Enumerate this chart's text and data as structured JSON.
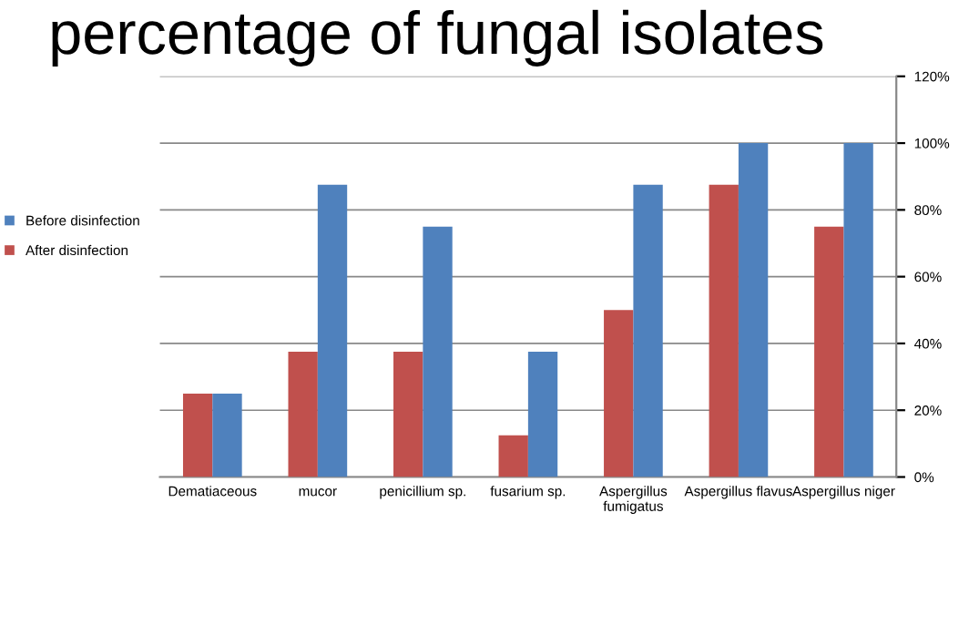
{
  "chart_data": {
    "type": "bar",
    "title": "percentage of fungal isolates",
    "categories": [
      "Dematiaceous",
      "mucor",
      "penicillium sp.",
      "fusarium sp.",
      "Aspergillus\nfumigatus",
      "Aspergillus flavus",
      "Aspergillus niger"
    ],
    "series": [
      {
        "name": "After disinfection",
        "color": "#c0504d",
        "values": [
          25,
          37.5,
          37.5,
          12.5,
          50,
          87.5,
          75
        ]
      },
      {
        "name": "Before disinfection",
        "color": "#4f81bd",
        "values": [
          25,
          87.5,
          75,
          37.5,
          87.5,
          100,
          100
        ]
      }
    ],
    "ylim": [
      0,
      120
    ],
    "yticks": [
      {
        "value": 0,
        "label": "0%"
      },
      {
        "value": 20,
        "label": "20%"
      },
      {
        "value": 40,
        "label": "40%"
      },
      {
        "value": 60,
        "label": "60%"
      },
      {
        "value": 80,
        "label": "80%"
      },
      {
        "value": 100,
        "label": "100%"
      },
      {
        "value": 120,
        "label": "120%"
      }
    ],
    "grid": "y",
    "legend": "left"
  }
}
